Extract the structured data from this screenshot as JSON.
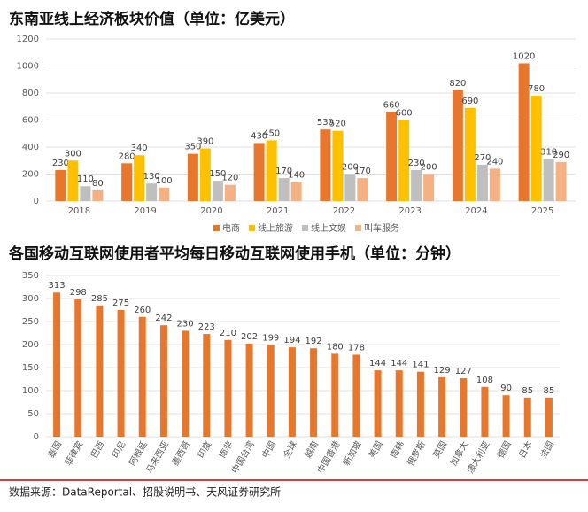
{
  "chart_data": [
    {
      "type": "bar",
      "title": "东南亚线上经济板块价值（单位：亿美元）",
      "categories": [
        "2018",
        "2019",
        "2020",
        "2021",
        "2022",
        "2023",
        "2024",
        "2025"
      ],
      "series": [
        {
          "name": "电商",
          "color": "#e8772e",
          "values": [
            230,
            280,
            350,
            430,
            530,
            660,
            820,
            1020
          ]
        },
        {
          "name": "线上旅游",
          "color": "#ffc000",
          "values": [
            300,
            340,
            390,
            450,
            520,
            600,
            690,
            780
          ]
        },
        {
          "name": "线上文娱",
          "color": "#bfbfbf",
          "values": [
            110,
            130,
            150,
            170,
            200,
            230,
            270,
            310
          ]
        },
        {
          "name": "叫车服务",
          "color": "#f4b183",
          "values": [
            80,
            100,
            120,
            140,
            170,
            200,
            240,
            290
          ]
        }
      ],
      "ylim": [
        0,
        1200
      ],
      "yticks": [
        0,
        200,
        400,
        600,
        800,
        1000,
        1200
      ],
      "grid": true,
      "legend": "bottom"
    },
    {
      "type": "bar",
      "title": "各国移动互联网使用者平均每日移动互联网使用手机（单位：分钟）",
      "categories": [
        "泰国",
        "菲律宾",
        "巴西",
        "印尼",
        "阿根廷",
        "马来西亚",
        "墨西哥",
        "印度",
        "南非",
        "中国台湾",
        "中国",
        "全球",
        "越南",
        "中国香港",
        "新加坡",
        "美国",
        "南韩",
        "俄罗斯",
        "英国",
        "加拿大",
        "澳大利亚",
        "德国",
        "日本",
        "法国"
      ],
      "values": [
        313,
        298,
        285,
        275,
        260,
        242,
        230,
        223,
        210,
        202,
        199,
        194,
        192,
        180,
        178,
        144,
        144,
        141,
        129,
        127,
        108,
        90,
        85,
        85
      ],
      "color": "#e8772e",
      "ylim": [
        0,
        350
      ],
      "yticks": [
        0,
        50,
        100,
        150,
        200,
        250,
        300,
        350
      ],
      "grid": true
    }
  ],
  "footer": "数据来源：DataReportal、招股说明书、天风证券研究所"
}
